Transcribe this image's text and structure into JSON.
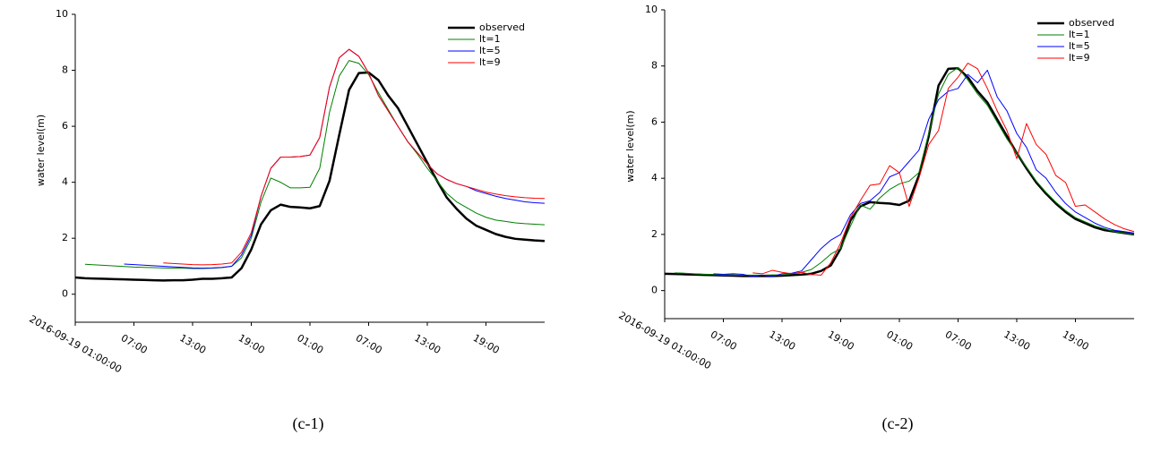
{
  "chart_data": [
    {
      "type": "line",
      "caption": "(c-1)",
      "ylabel": "water level(m)",
      "legend": "upper right",
      "categories": [
        "2016-09-19 01:00:00",
        null,
        null,
        null,
        null,
        null,
        "07:00",
        null,
        null,
        null,
        null,
        null,
        "13:00",
        null,
        null,
        null,
        null,
        null,
        "19:00",
        null,
        null,
        null,
        null,
        null,
        "01:00",
        null,
        null,
        null,
        null,
        null,
        "07:00",
        null,
        null,
        null,
        null,
        null,
        "13:00",
        null,
        null,
        null,
        null,
        null,
        "19:00",
        null,
        null,
        null,
        null,
        null,
        null
      ],
      "ylim": [
        -1,
        10
      ],
      "yticks": [
        0,
        2,
        4,
        6,
        8,
        10
      ],
      "series": [
        {
          "name": "observed",
          "color": "#000000",
          "values": [
            0.6,
            0.57,
            0.56,
            0.55,
            0.54,
            0.53,
            0.52,
            0.51,
            0.5,
            0.49,
            0.5,
            0.5,
            0.52,
            0.55,
            0.55,
            0.57,
            0.6,
            0.93,
            1.6,
            2.5,
            3.0,
            3.2,
            3.12,
            3.1,
            3.07,
            3.15,
            4.05,
            5.7,
            7.3,
            7.9,
            7.92,
            7.65,
            7.1,
            6.65,
            6.0,
            5.35,
            4.7,
            4.05,
            3.45,
            3.05,
            2.7,
            2.45,
            2.3,
            2.15,
            2.05,
            1.98,
            1.95,
            1.92,
            1.9
          ]
        },
        {
          "name": "lt=1",
          "color": "#008000",
          "values": [
            null,
            1.07,
            1.05,
            1.03,
            1.01,
            0.99,
            0.97,
            0.96,
            0.95,
            0.94,
            0.93,
            0.93,
            0.92,
            0.92,
            0.93,
            0.95,
            1.0,
            1.3,
            2.0,
            3.3,
            4.15,
            4.0,
            3.8,
            3.8,
            3.82,
            4.5,
            6.5,
            7.8,
            8.35,
            8.25,
            7.85,
            7.2,
            6.6,
            6.0,
            5.45,
            5.0,
            4.5,
            4.05,
            3.6,
            3.3,
            3.1,
            2.9,
            2.75,
            2.65,
            2.6,
            2.55,
            2.52,
            2.5,
            2.48
          ]
        },
        {
          "name": "lt=5",
          "color": "#0000ff",
          "values": [
            null,
            null,
            null,
            null,
            null,
            1.08,
            1.06,
            1.04,
            1.02,
            1.0,
            0.98,
            0.96,
            0.94,
            0.93,
            0.94,
            0.96,
            1.0,
            1.4,
            2.1,
            3.5,
            4.5,
            4.9,
            4.9,
            4.92,
            4.97,
            5.6,
            7.4,
            8.45,
            8.75,
            8.5,
            7.9,
            7.1,
            6.55,
            6.0,
            5.45,
            5.05,
            4.65,
            4.3,
            4.1,
            3.95,
            3.85,
            3.7,
            3.6,
            3.5,
            3.42,
            3.36,
            3.3,
            3.27,
            3.25
          ]
        },
        {
          "name": "lt=9",
          "color": "#ff0000",
          "values": [
            null,
            null,
            null,
            null,
            null,
            null,
            null,
            null,
            null,
            1.12,
            1.1,
            1.08,
            1.06,
            1.05,
            1.06,
            1.08,
            1.12,
            1.5,
            2.2,
            3.5,
            4.5,
            4.9,
            4.9,
            4.92,
            4.97,
            5.6,
            7.4,
            8.45,
            8.75,
            8.5,
            7.9,
            7.1,
            6.55,
            6.0,
            5.45,
            5.05,
            4.65,
            4.3,
            4.1,
            3.95,
            3.85,
            3.75,
            3.65,
            3.58,
            3.52,
            3.48,
            3.45,
            3.43,
            3.42
          ]
        }
      ]
    },
    {
      "type": "line",
      "caption": "(c-2)",
      "ylabel": "water level(m)",
      "legend": "upper right",
      "categories": [
        "2016-09-19 01:00:00",
        null,
        null,
        null,
        null,
        null,
        "07:00",
        null,
        null,
        null,
        null,
        null,
        "13:00",
        null,
        null,
        null,
        null,
        null,
        "19:00",
        null,
        null,
        null,
        null,
        null,
        "01:00",
        null,
        null,
        null,
        null,
        null,
        "07:00",
        null,
        null,
        null,
        null,
        null,
        "13:00",
        null,
        null,
        null,
        null,
        null,
        "19:00",
        null,
        null,
        null,
        null,
        null,
        null
      ],
      "ylim": [
        -1,
        10
      ],
      "yticks": [
        0,
        2,
        4,
        6,
        8,
        10
      ],
      "series": [
        {
          "name": "observed",
          "color": "#000000",
          "values": [
            0.6,
            0.59,
            0.58,
            0.57,
            0.56,
            0.55,
            0.54,
            0.53,
            0.52,
            0.52,
            0.52,
            0.52,
            0.53,
            0.55,
            0.57,
            0.6,
            0.7,
            0.9,
            1.5,
            2.5,
            3.0,
            3.15,
            3.12,
            3.1,
            3.05,
            3.2,
            4.1,
            5.5,
            7.3,
            7.9,
            7.92,
            7.6,
            7.1,
            6.7,
            6.1,
            5.5,
            4.9,
            4.35,
            3.85,
            3.45,
            3.1,
            2.8,
            2.55,
            2.4,
            2.25,
            2.15,
            2.1,
            2.05,
            2.0
          ]
        },
        {
          "name": "lt=1",
          "color": "#008000",
          "values": [
            null,
            0.63,
            0.62,
            0.6,
            0.58,
            0.57,
            0.55,
            0.55,
            0.55,
            0.55,
            0.55,
            0.56,
            0.56,
            0.6,
            0.65,
            0.75,
            1.0,
            1.3,
            1.5,
            2.3,
            3.05,
            2.9,
            3.3,
            3.6,
            3.8,
            3.9,
            4.2,
            5.6,
            7.0,
            7.7,
            7.95,
            7.5,
            7.0,
            6.6,
            6.0,
            5.4,
            4.9,
            4.4,
            3.9,
            3.5,
            3.15,
            2.85,
            2.6,
            2.45,
            2.3,
            2.2,
            2.1,
            2.05,
            2.0
          ]
        },
        {
          "name": "lt=5",
          "color": "#0000ff",
          "values": [
            null,
            null,
            null,
            null,
            null,
            0.6,
            0.58,
            0.6,
            0.58,
            0.5,
            0.55,
            0.5,
            0.6,
            0.62,
            0.7,
            1.1,
            1.5,
            1.8,
            2.0,
            2.7,
            3.1,
            3.2,
            3.5,
            4.05,
            4.2,
            4.6,
            5.0,
            6.1,
            6.8,
            7.1,
            7.2,
            7.7,
            7.4,
            7.85,
            6.9,
            6.4,
            5.6,
            5.1,
            4.3,
            4.0,
            3.5,
            3.1,
            2.8,
            2.6,
            2.4,
            2.25,
            2.15,
            2.1,
            2.05
          ]
        },
        {
          "name": "lt=9",
          "color": "#ff0000",
          "values": [
            null,
            null,
            null,
            null,
            null,
            null,
            null,
            null,
            null,
            0.63,
            0.6,
            0.72,
            0.65,
            0.6,
            0.65,
            0.57,
            0.55,
            1.0,
            1.7,
            2.6,
            3.2,
            3.75,
            3.8,
            4.45,
            4.2,
            3.0,
            4.0,
            5.2,
            5.7,
            7.2,
            7.6,
            8.1,
            7.9,
            7.2,
            6.4,
            5.7,
            4.7,
            5.95,
            5.2,
            4.85,
            4.1,
            3.85,
            3.0,
            3.05,
            2.8,
            2.55,
            2.35,
            2.2,
            2.1
          ]
        }
      ]
    }
  ]
}
